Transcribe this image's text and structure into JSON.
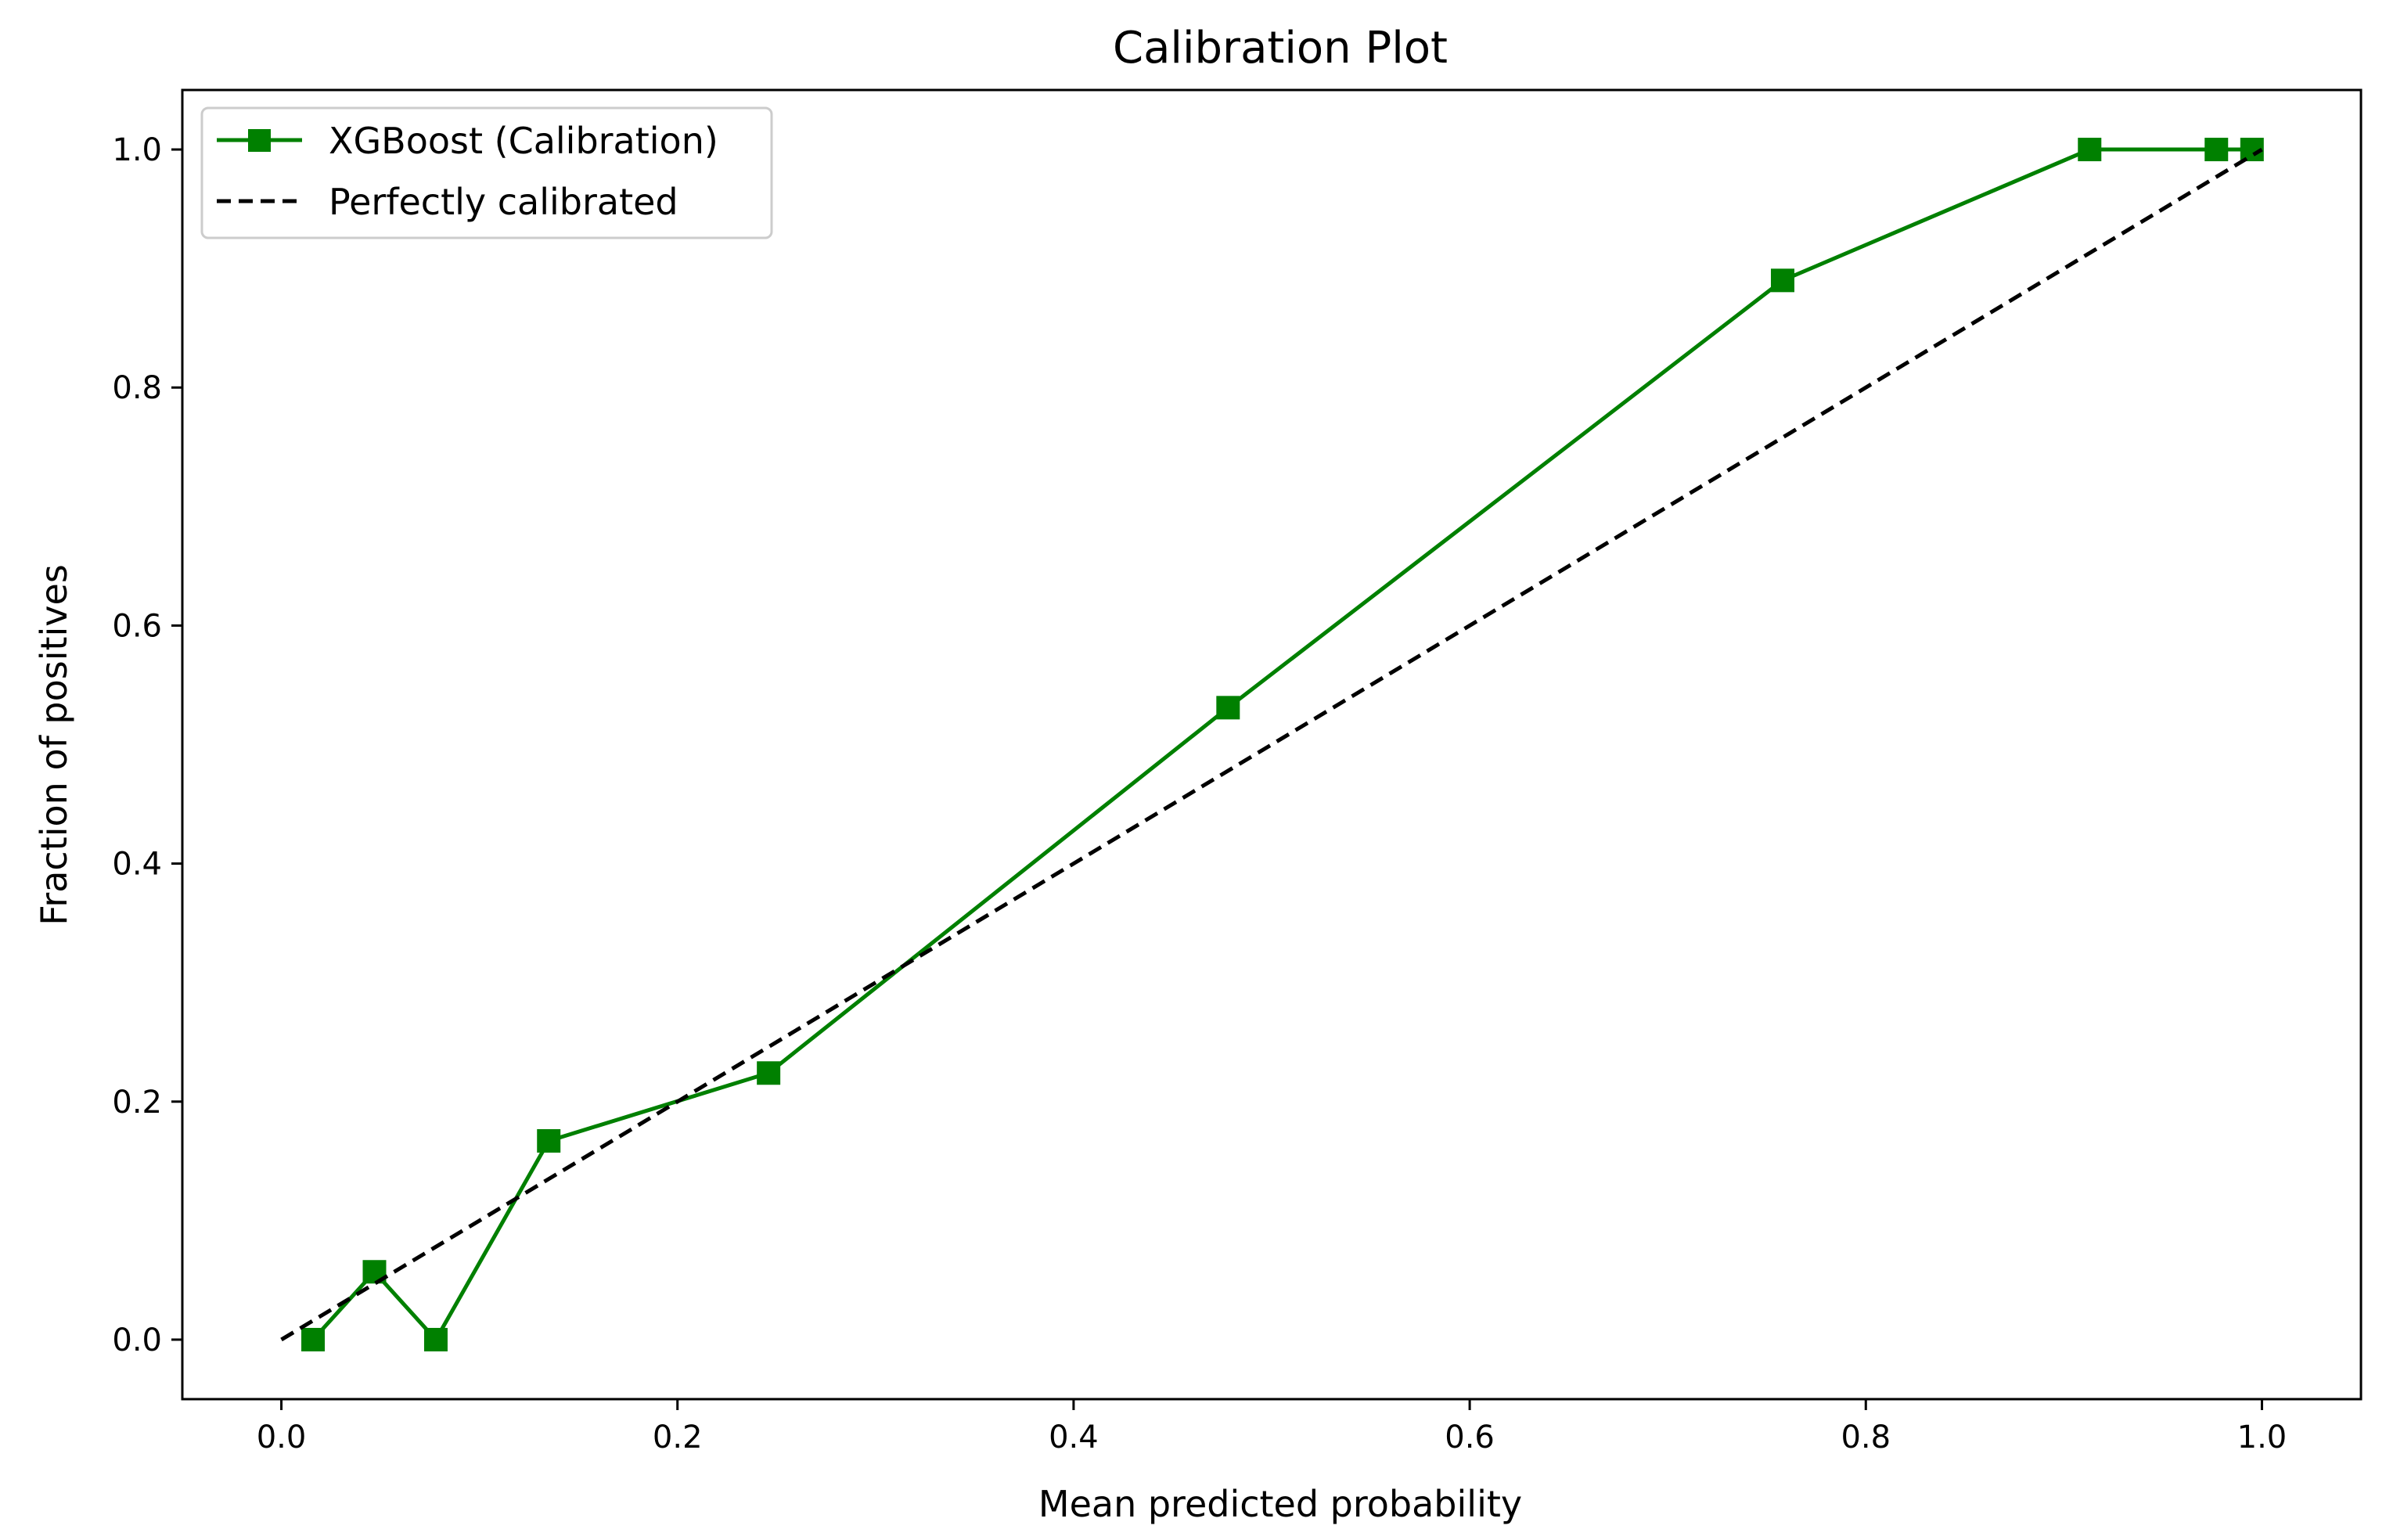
{
  "chart_data": {
    "type": "line",
    "title": "Calibration Plot",
    "xlabel": "Mean predicted probability",
    "ylabel": "Fraction of positives",
    "xlim": [
      -0.05,
      1.05
    ],
    "ylim": [
      -0.05,
      1.05
    ],
    "xticks": [
      0.0,
      0.2,
      0.4,
      0.6,
      0.8,
      1.0
    ],
    "xtick_labels": [
      "0.0",
      "0.2",
      "0.4",
      "0.6",
      "0.8",
      "1.0"
    ],
    "yticks": [
      0.0,
      0.2,
      0.4,
      0.6,
      0.8,
      1.0
    ],
    "ytick_labels": [
      "0.0",
      "0.2",
      "0.4",
      "0.6",
      "0.8",
      "1.0"
    ],
    "grid": false,
    "legend_position": "upper-left",
    "series": [
      {
        "name": "XGBoost (Calibration)",
        "style": "solid-line-square-markers",
        "color": "#008000",
        "x": [
          0.016,
          0.047,
          0.078,
          0.135,
          0.246,
          0.478,
          0.758,
          0.913,
          0.977,
          0.995
        ],
        "y": [
          0.0,
          0.057,
          0.0,
          0.167,
          0.224,
          0.531,
          0.89,
          1.0,
          1.0,
          1.0
        ]
      },
      {
        "name": "Perfectly calibrated",
        "style": "dashed-line",
        "color": "#000000",
        "x": [
          0.0,
          1.0
        ],
        "y": [
          0.0,
          1.0
        ]
      }
    ]
  }
}
